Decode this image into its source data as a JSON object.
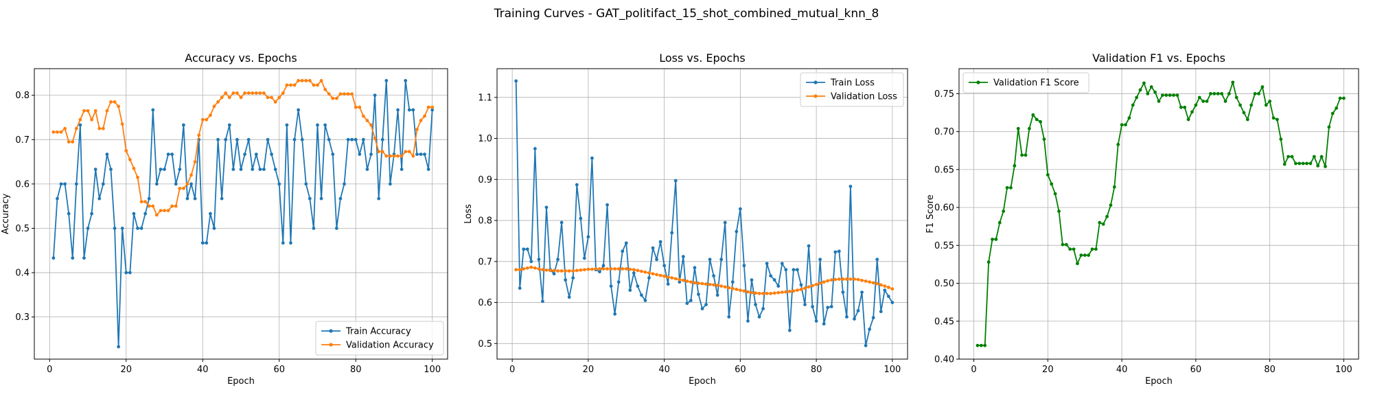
{
  "figure": {
    "suptitle": "Training Curves - GAT_politifact_15_shot_combined_mutual_knn_8"
  },
  "chart_data": [
    {
      "type": "line",
      "title": "Accuracy vs. Epochs",
      "xlabel": "Epoch",
      "ylabel": "Accuracy",
      "xlim": [
        -4,
        104
      ],
      "ylim": [
        0.205,
        0.86
      ],
      "xticks": [
        0,
        20,
        40,
        60,
        80,
        100
      ],
      "yticks": [
        0.3,
        0.4,
        0.5,
        0.6,
        0.7,
        0.8
      ],
      "grid": true,
      "legend_position": "lower-right",
      "series": [
        {
          "name": "Train Accuracy",
          "color": "#1f77b4",
          "values": [
            0.433,
            0.567,
            0.6,
            0.6,
            0.533,
            0.433,
            0.6,
            0.733,
            0.433,
            0.5,
            0.533,
            0.633,
            0.567,
            0.6,
            0.667,
            0.633,
            0.5,
            0.233,
            0.5,
            0.4,
            0.4,
            0.533,
            0.5,
            0.5,
            0.533,
            0.567,
            0.767,
            0.6,
            0.633,
            0.633,
            0.667,
            0.667,
            0.6,
            0.633,
            0.733,
            0.567,
            0.6,
            0.567,
            0.7,
            0.467,
            0.467,
            0.533,
            0.5,
            0.7,
            0.567,
            0.7,
            0.733,
            0.633,
            0.7,
            0.633,
            0.667,
            0.7,
            0.633,
            0.667,
            0.633,
            0.633,
            0.7,
            0.667,
            0.633,
            0.6,
            0.467,
            0.733,
            0.467,
            0.7,
            0.767,
            0.7,
            0.6,
            0.567,
            0.5,
            0.733,
            0.567,
            0.733,
            0.7,
            0.667,
            0.5,
            0.567,
            0.6,
            0.7,
            0.7,
            0.7,
            0.667,
            0.7,
            0.633,
            0.667,
            0.8,
            0.567,
            0.7,
            0.833,
            0.6,
            0.667,
            0.767,
            0.633,
            0.833,
            0.767,
            0.767,
            0.667,
            0.667,
            0.667,
            0.633,
            0.767
          ]
        },
        {
          "name": "Validation Accuracy",
          "color": "#ff7f0e",
          "values": [
            0.717,
            0.717,
            0.717,
            0.725,
            0.695,
            0.695,
            0.725,
            0.745,
            0.765,
            0.765,
            0.745,
            0.765,
            0.725,
            0.725,
            0.765,
            0.785,
            0.785,
            0.775,
            0.735,
            0.675,
            0.655,
            0.635,
            0.615,
            0.56,
            0.56,
            0.55,
            0.55,
            0.53,
            0.54,
            0.54,
            0.54,
            0.55,
            0.55,
            0.59,
            0.59,
            0.6,
            0.62,
            0.65,
            0.71,
            0.745,
            0.745,
            0.755,
            0.775,
            0.785,
            0.795,
            0.805,
            0.795,
            0.805,
            0.805,
            0.795,
            0.805,
            0.805,
            0.805,
            0.805,
            0.805,
            0.805,
            0.795,
            0.795,
            0.785,
            0.795,
            0.805,
            0.823,
            0.823,
            0.823,
            0.833,
            0.833,
            0.833,
            0.833,
            0.823,
            0.823,
            0.833,
            0.813,
            0.803,
            0.793,
            0.793,
            0.803,
            0.803,
            0.803,
            0.803,
            0.773,
            0.773,
            0.753,
            0.743,
            0.733,
            0.703,
            0.673,
            0.673,
            0.663,
            0.663,
            0.663,
            0.663,
            0.663,
            0.673,
            0.673,
            0.663,
            0.723,
            0.743,
            0.753,
            0.773,
            0.773
          ]
        }
      ]
    },
    {
      "type": "line",
      "title": "Loss vs. Epochs",
      "xlabel": "Epoch",
      "ylabel": "Loss",
      "xlim": [
        -4,
        104
      ],
      "ylim": [
        0.462,
        1.17
      ],
      "xticks": [
        0,
        20,
        40,
        60,
        80,
        100
      ],
      "yticks": [
        0.5,
        0.6,
        0.7,
        0.8,
        0.9,
        1.0,
        1.1
      ],
      "ytick_labels": [
        "0.5",
        "0.6",
        "0.7",
        "0.8",
        "0.9",
        "1.0",
        "1.1"
      ],
      "grid": true,
      "legend_position": "upper-right",
      "series": [
        {
          "name": "Train Loss",
          "color": "#1f77b4",
          "values": [
            1.14,
            0.635,
            0.73,
            0.73,
            0.7,
            0.975,
            0.705,
            0.603,
            0.832,
            0.68,
            0.67,
            0.705,
            0.795,
            0.655,
            0.613,
            0.66,
            0.887,
            0.805,
            0.708,
            0.76,
            0.952,
            0.68,
            0.675,
            0.69,
            0.838,
            0.64,
            0.572,
            0.65,
            0.725,
            0.745,
            0.63,
            0.672,
            0.64,
            0.618,
            0.605,
            0.66,
            0.733,
            0.705,
            0.748,
            0.69,
            0.645,
            0.77,
            0.897,
            0.65,
            0.712,
            0.598,
            0.605,
            0.685,
            0.62,
            0.585,
            0.595,
            0.705,
            0.665,
            0.618,
            0.705,
            0.795,
            0.565,
            0.65,
            0.773,
            0.828,
            0.69,
            0.555,
            0.655,
            0.595,
            0.565,
            0.585,
            0.695,
            0.665,
            0.655,
            0.64,
            0.695,
            0.68,
            0.532,
            0.68,
            0.68,
            0.643,
            0.595,
            0.738,
            0.59,
            0.555,
            0.705,
            0.548,
            0.588,
            0.59,
            0.723,
            0.725,
            0.625,
            0.565,
            0.883,
            0.56,
            0.58,
            0.625,
            0.495,
            0.535,
            0.563,
            0.705,
            0.578,
            0.63,
            0.615,
            0.6
          ]
        },
        {
          "name": "Validation Loss",
          "color": "#ff7f0e",
          "values": [
            0.68,
            0.68,
            0.682,
            0.684,
            0.686,
            0.684,
            0.682,
            0.68,
            0.679,
            0.678,
            0.678,
            0.677,
            0.677,
            0.677,
            0.677,
            0.677,
            0.678,
            0.679,
            0.68,
            0.681,
            0.681,
            0.682,
            0.682,
            0.682,
            0.682,
            0.682,
            0.682,
            0.682,
            0.682,
            0.682,
            0.681,
            0.68,
            0.678,
            0.676,
            0.674,
            0.672,
            0.67,
            0.668,
            0.666,
            0.664,
            0.662,
            0.66,
            0.658,
            0.656,
            0.654,
            0.652,
            0.65,
            0.648,
            0.647,
            0.646,
            0.645,
            0.644,
            0.643,
            0.642,
            0.64,
            0.638,
            0.636,
            0.634,
            0.632,
            0.63,
            0.628,
            0.626,
            0.624,
            0.623,
            0.622,
            0.622,
            0.622,
            0.622,
            0.623,
            0.624,
            0.625,
            0.626,
            0.627,
            0.628,
            0.63,
            0.632,
            0.635,
            0.638,
            0.641,
            0.644,
            0.647,
            0.65,
            0.653,
            0.655,
            0.656,
            0.657,
            0.657,
            0.657,
            0.657,
            0.657,
            0.656,
            0.654,
            0.652,
            0.65,
            0.648,
            0.646,
            0.643,
            0.64,
            0.637,
            0.633
          ]
        }
      ]
    },
    {
      "type": "line",
      "title": "Validation F1 vs. Epochs",
      "xlabel": "Epoch",
      "ylabel": "F1 Score",
      "xlim": [
        -4,
        104
      ],
      "ylim": [
        0.4,
        0.783
      ],
      "xticks": [
        0,
        20,
        40,
        60,
        80,
        100
      ],
      "yticks": [
        0.4,
        0.45,
        0.5,
        0.55,
        0.6,
        0.65,
        0.7,
        0.75
      ],
      "grid": true,
      "legend_position": "upper-left",
      "series": [
        {
          "name": "Validation F1 Score",
          "color": "#008000",
          "values": [
            0.418,
            0.418,
            0.418,
            0.528,
            0.558,
            0.558,
            0.58,
            0.595,
            0.626,
            0.626,
            0.655,
            0.704,
            0.669,
            0.669,
            0.704,
            0.722,
            0.716,
            0.713,
            0.69,
            0.643,
            0.631,
            0.618,
            0.595,
            0.551,
            0.551,
            0.545,
            0.545,
            0.526,
            0.537,
            0.537,
            0.537,
            0.545,
            0.545,
            0.58,
            0.578,
            0.588,
            0.603,
            0.627,
            0.683,
            0.709,
            0.709,
            0.718,
            0.735,
            0.745,
            0.755,
            0.764,
            0.75,
            0.759,
            0.752,
            0.74,
            0.748,
            0.748,
            0.748,
            0.748,
            0.748,
            0.732,
            0.732,
            0.716,
            0.726,
            0.735,
            0.745,
            0.74,
            0.74,
            0.75,
            0.75,
            0.75,
            0.75,
            0.74,
            0.75,
            0.765,
            0.745,
            0.735,
            0.725,
            0.716,
            0.735,
            0.75,
            0.75,
            0.759,
            0.735,
            0.74,
            0.718,
            0.716,
            0.69,
            0.657,
            0.667,
            0.667,
            0.658,
            0.658,
            0.658,
            0.658,
            0.658,
            0.667,
            0.655,
            0.667,
            0.654,
            0.706,
            0.724,
            0.731,
            0.744,
            0.744
          ]
        }
      ]
    }
  ]
}
